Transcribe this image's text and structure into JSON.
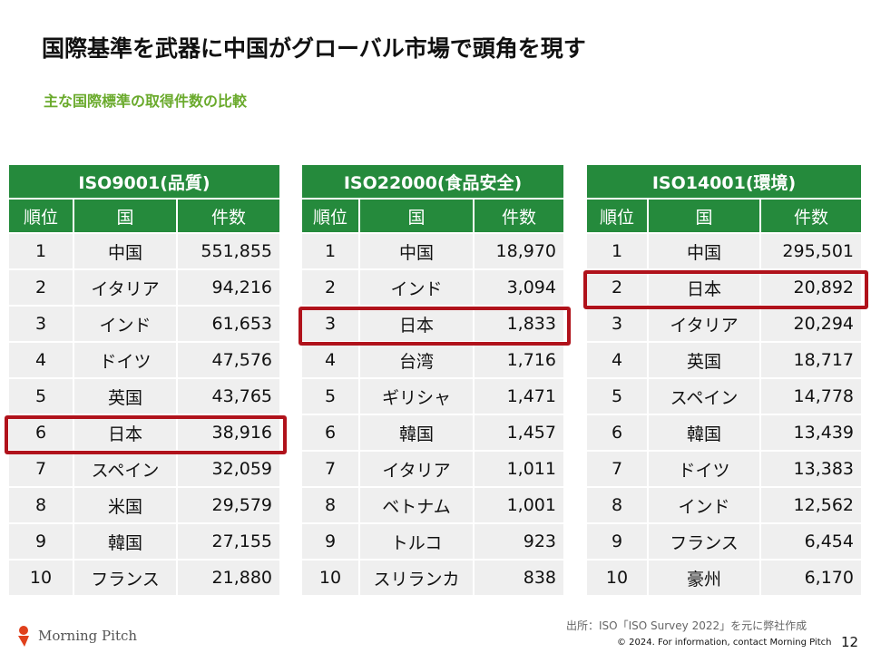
{
  "title": "国際基準を武器に中国がグローバル市場で頭角を現す",
  "subtitle": "主な国際標準の取得件数の比較",
  "columns": {
    "rank": "順位",
    "country": "国",
    "count": "件数"
  },
  "tables": [
    {
      "standard": "ISO9001(品質)",
      "highlight_rank": 6,
      "rows": [
        {
          "rank": "1",
          "country": "中国",
          "count": "551,855"
        },
        {
          "rank": "2",
          "country": "イタリア",
          "count": "94,216"
        },
        {
          "rank": "3",
          "country": "インド",
          "count": "61,653"
        },
        {
          "rank": "4",
          "country": "ドイツ",
          "count": "47,576"
        },
        {
          "rank": "5",
          "country": "英国",
          "count": "43,765"
        },
        {
          "rank": "6",
          "country": "日本",
          "count": "38,916"
        },
        {
          "rank": "7",
          "country": "スペイン",
          "count": "32,059"
        },
        {
          "rank": "8",
          "country": "米国",
          "count": "29,579"
        },
        {
          "rank": "9",
          "country": "韓国",
          "count": "27,155"
        },
        {
          "rank": "10",
          "country": "フランス",
          "count": "21,880"
        }
      ]
    },
    {
      "standard": "ISO22000(食品安全)",
      "highlight_rank": 3,
      "rows": [
        {
          "rank": "1",
          "country": "中国",
          "count": "18,970"
        },
        {
          "rank": "2",
          "country": "インド",
          "count": "3,094"
        },
        {
          "rank": "3",
          "country": "日本",
          "count": "1,833"
        },
        {
          "rank": "4",
          "country": "台湾",
          "count": "1,716"
        },
        {
          "rank": "5",
          "country": "ギリシャ",
          "count": "1,471"
        },
        {
          "rank": "6",
          "country": "韓国",
          "count": "1,457"
        },
        {
          "rank": "7",
          "country": "イタリア",
          "count": "1,011"
        },
        {
          "rank": "8",
          "country": "ベトナム",
          "count": "1,001"
        },
        {
          "rank": "9",
          "country": "トルコ",
          "count": "923"
        },
        {
          "rank": "10",
          "country": "スリランカ",
          "count": "838"
        }
      ]
    },
    {
      "standard": "ISO14001(環境)",
      "highlight_rank": 2,
      "rows": [
        {
          "rank": "1",
          "country": "中国",
          "count": "295,501"
        },
        {
          "rank": "2",
          "country": "日本",
          "count": "20,892"
        },
        {
          "rank": "3",
          "country": "イタリア",
          "count": "20,294"
        },
        {
          "rank": "4",
          "country": "英国",
          "count": "18,717"
        },
        {
          "rank": "5",
          "country": "スペイン",
          "count": "14,778"
        },
        {
          "rank": "6",
          "country": "韓国",
          "count": "13,439"
        },
        {
          "rank": "7",
          "country": "ドイツ",
          "count": "13,383"
        },
        {
          "rank": "8",
          "country": "インド",
          "count": "12,562"
        },
        {
          "rank": "9",
          "country": "フランス",
          "count": "6,454"
        },
        {
          "rank": "10",
          "country": "豪州",
          "count": "6,170"
        }
      ]
    }
  ],
  "source": "出所：ISO「ISO Survey 2022」を元に弊社作成",
  "copyright": "© 2024. For information, contact Morning Pitch",
  "page_number": "12",
  "logo_text": "Morning Pitch",
  "colors": {
    "header_green": "#258a3c",
    "subtitle_green": "#6aaa2c",
    "highlight_red": "#b0121b",
    "cell_gray": "#efefef"
  }
}
